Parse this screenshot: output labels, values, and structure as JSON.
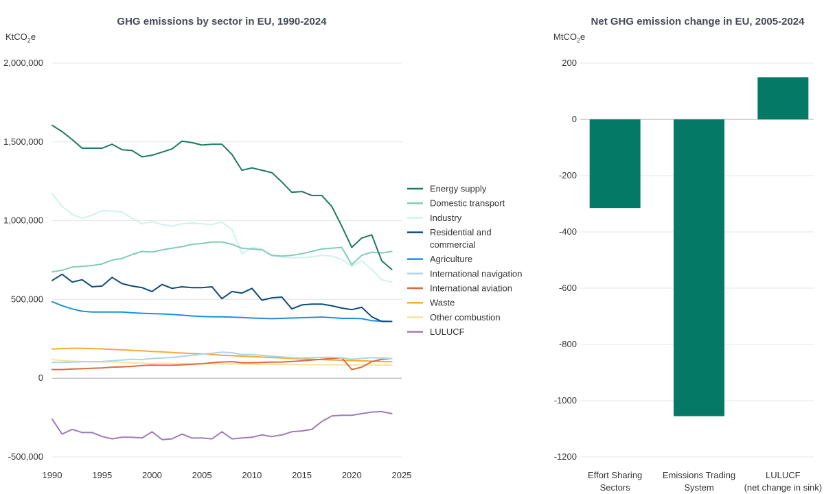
{
  "chart_data": [
    {
      "type": "line",
      "title": "GHG emissions by sector in EU, 1990-2024",
      "ylabel_main": "KtCO",
      "ylabel_sub": "2",
      "ylabel_tail": "e",
      "xlim": [
        1990,
        2025
      ],
      "ylim": [
        -500000,
        2000000
      ],
      "xticks": [
        1990,
        1995,
        2000,
        2005,
        2010,
        2015,
        2020,
        2025
      ],
      "xtick_labels": [
        "1990",
        "1995",
        "2000",
        "2005",
        "2010",
        "2015",
        "2020",
        "2025"
      ],
      "yticks": [
        -500000,
        0,
        500000,
        1000000,
        1500000,
        2000000
      ],
      "ytick_labels": [
        "-500,000",
        "0",
        "500,000",
        "1,000,000",
        "1,500,000",
        "2,000,000"
      ],
      "grid": true,
      "legend_position": "right",
      "x": [
        1990,
        1991,
        1992,
        1993,
        1994,
        1995,
        1996,
        1997,
        1998,
        1999,
        2000,
        2001,
        2002,
        2003,
        2004,
        2005,
        2006,
        2007,
        2008,
        2009,
        2010,
        2011,
        2012,
        2013,
        2014,
        2015,
        2016,
        2017,
        2018,
        2019,
        2020,
        2021,
        2022,
        2023,
        2024
      ],
      "series": [
        {
          "name": "Energy supply",
          "color": "#1a7a60",
          "values": [
            1605000,
            1565000,
            1515000,
            1460000,
            1460000,
            1460000,
            1485000,
            1450000,
            1445000,
            1405000,
            1415000,
            1435000,
            1455000,
            1505000,
            1495000,
            1480000,
            1485000,
            1485000,
            1420000,
            1320000,
            1335000,
            1320000,
            1305000,
            1245000,
            1180000,
            1185000,
            1160000,
            1160000,
            1090000,
            965000,
            830000,
            890000,
            910000,
            745000,
            690000
          ]
        },
        {
          "name": "Domestic transport",
          "color": "#7fcdb8",
          "values": [
            675000,
            685000,
            705000,
            710000,
            715000,
            725000,
            750000,
            760000,
            785000,
            805000,
            800000,
            815000,
            825000,
            835000,
            850000,
            855000,
            865000,
            865000,
            850000,
            825000,
            820000,
            815000,
            780000,
            775000,
            780000,
            790000,
            805000,
            820000,
            825000,
            830000,
            720000,
            780000,
            800000,
            795000,
            805000
          ]
        },
        {
          "name": "Industry",
          "color": "#cdf3ec",
          "values": [
            1170000,
            1090000,
            1040000,
            1015000,
            1035000,
            1065000,
            1060000,
            1055000,
            1015000,
            980000,
            995000,
            975000,
            965000,
            980000,
            985000,
            980000,
            975000,
            990000,
            945000,
            790000,
            830000,
            820000,
            775000,
            770000,
            765000,
            765000,
            770000,
            780000,
            775000,
            755000,
            710000,
            745000,
            690000,
            625000,
            610000
          ]
        },
        {
          "name": "Residential and commercial",
          "color": "#0d4a7a",
          "values": [
            620000,
            660000,
            610000,
            625000,
            580000,
            585000,
            640000,
            600000,
            585000,
            575000,
            550000,
            595000,
            570000,
            580000,
            575000,
            575000,
            580000,
            505000,
            550000,
            540000,
            570000,
            495000,
            510000,
            515000,
            440000,
            465000,
            470000,
            470000,
            460000,
            445000,
            435000,
            450000,
            390000,
            360000,
            360000
          ]
        },
        {
          "name": "Agriculture",
          "color": "#1e8fe0",
          "values": [
            485000,
            460000,
            440000,
            425000,
            420000,
            420000,
            420000,
            420000,
            415000,
            412000,
            410000,
            408000,
            405000,
            400000,
            395000,
            392000,
            390000,
            390000,
            387000,
            385000,
            382000,
            380000,
            378000,
            380000,
            382000,
            384000,
            386000,
            388000,
            384000,
            380000,
            380000,
            378000,
            365000,
            362000,
            360000
          ]
        },
        {
          "name": "International navigation",
          "color": "#a8d5f2",
          "values": [
            100000,
            100000,
            102000,
            104000,
            105000,
            106000,
            110000,
            115000,
            120000,
            118000,
            125000,
            128000,
            132000,
            138000,
            145000,
            152000,
            158000,
            165000,
            162000,
            150000,
            150000,
            145000,
            140000,
            135000,
            130000,
            128000,
            130000,
            132000,
            133000,
            130000,
            120000,
            125000,
            130000,
            128000,
            125000
          ]
        },
        {
          "name": "International aviation",
          "color": "#e06a3a",
          "values": [
            55000,
            55000,
            58000,
            60000,
            63000,
            65000,
            70000,
            72000,
            75000,
            80000,
            83000,
            82000,
            82000,
            85000,
            88000,
            92000,
            98000,
            103000,
            105000,
            98000,
            98000,
            100000,
            102000,
            103000,
            106000,
            110000,
            115000,
            120000,
            125000,
            130000,
            55000,
            70000,
            105000,
            120000,
            125000
          ]
        },
        {
          "name": "Waste",
          "color": "#f5aa35",
          "values": [
            185000,
            188000,
            190000,
            190000,
            188000,
            186000,
            183000,
            180000,
            177000,
            174000,
            170000,
            167000,
            163000,
            160000,
            157000,
            154000,
            150000,
            146000,
            143000,
            140000,
            137000,
            134000,
            131000,
            128000,
            125000,
            122000,
            120000,
            118000,
            116000,
            114000,
            112000,
            110000,
            108000,
            106000,
            104000
          ]
        },
        {
          "name": "Other combustion",
          "color": "#f7e3a0",
          "values": [
            118000,
            112000,
            108000,
            106000,
            104000,
            103000,
            104000,
            100000,
            98000,
            96000,
            94000,
            95000,
            93000,
            93000,
            92000,
            92000,
            91000,
            90000,
            90000,
            89000,
            89000,
            88000,
            88000,
            87000,
            87000,
            86000,
            86000,
            86000,
            85000,
            85000,
            84000,
            84000,
            84000,
            83000,
            83000
          ]
        },
        {
          "name": "LULUCF",
          "color": "#a07ab8",
          "values": [
            -260000,
            -355000,
            -325000,
            -345000,
            -345000,
            -370000,
            -385000,
            -375000,
            -375000,
            -380000,
            -340000,
            -390000,
            -385000,
            -355000,
            -380000,
            -380000,
            -385000,
            -340000,
            -385000,
            -380000,
            -375000,
            -360000,
            -370000,
            -360000,
            -340000,
            -335000,
            -325000,
            -275000,
            -240000,
            -235000,
            -235000,
            -225000,
            -215000,
            -212000,
            -225000
          ]
        }
      ]
    },
    {
      "type": "bar",
      "title": "Net GHG emission change in EU, 2005-2024",
      "ylabel_main": "MtCO",
      "ylabel_sub": "2",
      "ylabel_tail": "e",
      "ylim": [
        -1200,
        200
      ],
      "yticks": [
        -1200,
        -1000,
        -800,
        -600,
        -400,
        -200,
        0,
        200
      ],
      "ytick_labels": [
        "-1200",
        "-1000",
        "-800",
        "-600",
        "-400",
        "-200",
        "0",
        "200"
      ],
      "color": "#047a66",
      "categories": [
        {
          "line1": "Effort Sharing",
          "line2": "Sectors"
        },
        {
          "line1": "Emissions Trading",
          "line2": "System"
        },
        {
          "line1": "LULUCF",
          "line2": "(net change in sink)"
        }
      ],
      "values": [
        -315,
        -1055,
        150
      ]
    }
  ]
}
